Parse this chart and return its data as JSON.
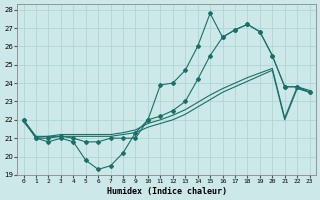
{
  "xlabel": "Humidex (Indice chaleur)",
  "xlim": [
    -0.5,
    23.5
  ],
  "ylim": [
    19,
    28.3
  ],
  "yticks": [
    19,
    20,
    21,
    22,
    23,
    24,
    25,
    26,
    27,
    28
  ],
  "xticks": [
    0,
    1,
    2,
    3,
    4,
    5,
    6,
    7,
    8,
    9,
    10,
    11,
    12,
    13,
    14,
    15,
    16,
    17,
    18,
    19,
    20,
    21,
    22,
    23
  ],
  "bg_color": "#cce8e8",
  "grid_color": "#aad0d0",
  "line_color": "#1a7068",
  "line1_y": [
    22,
    21,
    20.8,
    21,
    20.8,
    19.8,
    19.3,
    19.5,
    20.2,
    21.3,
    22.0,
    23.9,
    24.0,
    24.7,
    26.0,
    27.8,
    26.5,
    26.9,
    27.2,
    26.8,
    25.5,
    23.8,
    23.8,
    23.5
  ],
  "line2_y": [
    22,
    21,
    21.0,
    21.1,
    21.0,
    20.8,
    20.8,
    21.0,
    21.0,
    21.0,
    22.0,
    22.2,
    22.5,
    23.0,
    24.2,
    25.5,
    26.5,
    26.9,
    27.2,
    26.8,
    25.5,
    23.8,
    23.8,
    23.5
  ],
  "line3_y": [
    21.9,
    21.05,
    21.1,
    21.1,
    21.1,
    21.1,
    21.1,
    21.1,
    21.2,
    21.3,
    21.6,
    21.8,
    22.0,
    22.3,
    22.7,
    23.1,
    23.5,
    23.8,
    24.1,
    24.4,
    24.7,
    22.0,
    23.7,
    23.5
  ],
  "line4_y": [
    22.0,
    21.1,
    21.1,
    21.2,
    21.2,
    21.2,
    21.2,
    21.2,
    21.3,
    21.45,
    21.8,
    22.0,
    22.25,
    22.55,
    22.95,
    23.35,
    23.7,
    24.0,
    24.3,
    24.55,
    24.8,
    22.1,
    23.8,
    23.6
  ]
}
